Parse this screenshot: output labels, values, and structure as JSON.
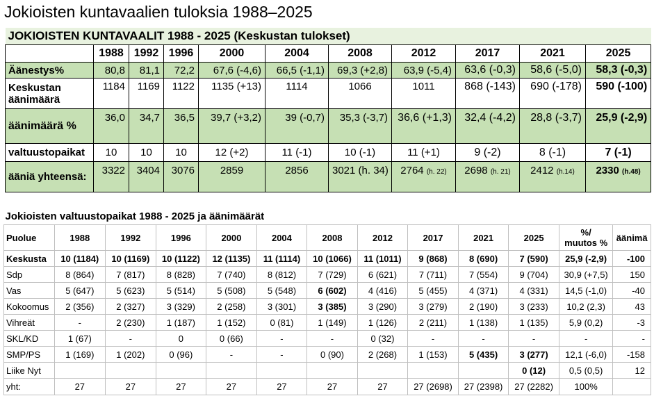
{
  "page_title": "Jokioisten kuntavaalien tuloksia 1988–2025",
  "table1": {
    "caption": "JOKIOISTEN KUNTAVAALIT 1988 - 2025 (Keskustan tulokset)",
    "years": [
      "1988",
      "1992",
      "1996",
      "2000",
      "2004",
      "2008",
      "2012",
      "2017",
      "2021",
      "2025"
    ],
    "rows": [
      {
        "label": "Äänestys%",
        "values": [
          "80,8",
          "81,1",
          "72,2",
          "67,6 (-4,6)",
          "66,5 (-1,1)",
          "69,3 (+2,8)",
          "63,9 (-5,4)",
          "63,6 (-0,3)",
          "58,6 (-5,0)",
          "58,3 (-0,3)"
        ]
      },
      {
        "label_line1": "Keskustan",
        "label_line2": "äänimäärä",
        "values": [
          "1184",
          "1169",
          "1122",
          "1135 (+13)",
          "1114",
          "1066",
          "1011",
          "868 (-143)",
          "690 (-178)",
          "590 (-100)"
        ]
      },
      {
        "label": "äänimäärä %",
        "values": [
          "36,0",
          "34,7",
          "36,5",
          "39,7 (+3,2)",
          "39 (-0,7)",
          "35,3 (-3,7)",
          "36,6 (+1,3)",
          "32,4 (-4,2)",
          "28,8 (-3,7)",
          "25,9 (-2,9)"
        ]
      },
      {
        "label": "valtuustopaikat",
        "values": [
          "10",
          "10",
          "10",
          "12 (+2)",
          "11 (-1)",
          "10 (-1)",
          "11 (+1)",
          "9 (-2)",
          "8 (-1)",
          "7 (-1)"
        ]
      },
      {
        "label": "ääniä yhteensä:",
        "values": [
          "3322",
          "3404",
          "3076",
          "2859",
          "2856",
          "3021 (h. 34)",
          "2764",
          "2698",
          "2412",
          "2330"
        ],
        "notes": [
          "",
          "",
          "",
          "",
          "",
          "",
          "(h. 22)",
          "(h. 21)",
          "(h.14)",
          "(h.48)"
        ]
      }
    ]
  },
  "table2": {
    "caption": "Jokioisten valtuustopaikat 1988 - 2025 ja äänimäärät",
    "headers": [
      "Puolue",
      "1988",
      "1992",
      "1996",
      "2000",
      "2004",
      "2008",
      "2012",
      "2017",
      "2021",
      "2025",
      "%/",
      "muutos %",
      "äänimä"
    ],
    "rows": [
      {
        "party": "Keskusta",
        "cells": [
          "10 (1184)",
          "10 (1169)",
          "10 (1122)",
          "12 (1135)",
          "11 (1114)",
          "10 (1066)",
          "11 (1011)",
          "9 (868)",
          "8 (690)",
          "7 (590)",
          "25,9 (-2,9)",
          "-100"
        ]
      },
      {
        "party": "Sdp",
        "cells": [
          "8 (864)",
          "7 (817)",
          "8 (828)",
          "7 (740)",
          "8 (812)",
          "7 (729)",
          "6 (621)",
          "7 (711)",
          "7 (554)",
          "9 (704)",
          "30,9 (+7,5)",
          "150"
        ]
      },
      {
        "party": "Vas",
        "cells": [
          "5 (647)",
          "5 (623)",
          "5 (514)",
          "5 (508)",
          "5 (548)",
          "6 (602)",
          "4 (416)",
          "5 (455)",
          "4 (371)",
          "4 (331)",
          "14,5 (-1,0)",
          "-40"
        ]
      },
      {
        "party": "Kokoomus",
        "cells": [
          "2 (356)",
          "2 (327)",
          "3 (329)",
          "2 (258)",
          "3 (301)",
          "3 (385)",
          "3 (290)",
          "3 (279)",
          "2 (190)",
          "3 (233)",
          "10,2 (2,3)",
          "43"
        ]
      },
      {
        "party": "Vihreät",
        "cells": [
          "-",
          "2 (230)",
          "1 (187)",
          "1 (152)",
          "0 (81)",
          "1 (149)",
          "1 (126)",
          "2 (211)",
          "1 (138)",
          "1 (135)",
          "5,9 (0,2)",
          "-3"
        ]
      },
      {
        "party": "SKL/KD",
        "cells": [
          "1 (67)",
          "-",
          "0",
          "0 (66)",
          "-",
          "-",
          "0 (32)",
          "-",
          "-",
          "-",
          "-",
          "-"
        ]
      },
      {
        "party": "SMP/PS",
        "cells": [
          "1 (169)",
          "1 (202)",
          "0 (96)",
          "-",
          "-",
          "0 (90)",
          "2 (268)",
          "1 (153)",
          "5 (435)",
          "3 (277)",
          "12,1 (-6,0)",
          "-158"
        ]
      },
      {
        "party": "Liike Nyt",
        "cells": [
          "",
          "",
          "",
          "",
          "",
          "",
          "",
          "",
          "",
          "0 (12)",
          "0,5 (0,5)",
          "12"
        ]
      },
      {
        "party": "yht:",
        "cells": [
          "27",
          "27",
          "27",
          "27",
          "27",
          "27",
          "27",
          "27 (2698)",
          "27 (2398)",
          "27 (2282)",
          "100%",
          ""
        ]
      }
    ]
  }
}
